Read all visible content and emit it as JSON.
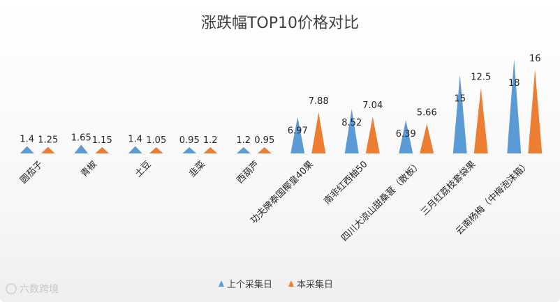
{
  "watermark": "六数跨境",
  "chart_data": {
    "type": "bar",
    "bar_shape": "triangle",
    "title": "涨跌幅TOP10价格对比",
    "xlabel": "",
    "ylabel": "",
    "ylim": [
      0,
      18
    ],
    "grid": false,
    "legend_placement": "bottom",
    "categories": [
      "圆茄子",
      "青椒",
      "土豆",
      "韭菜",
      "西葫芦",
      "功夫牌泰国椰皇40果",
      "南非红西柚50",
      "四川大凉山甜桑葚（散板）",
      "三月红荔枝套袋果",
      "云南杨梅（中梅泡沫箱）"
    ],
    "series": [
      {
        "name": "上个采集日",
        "color": "#5b9bd5",
        "values": [
          1.4,
          1.65,
          1.4,
          0.95,
          1.2,
          6.97,
          8.52,
          6.39,
          15,
          18
        ],
        "labels": [
          "1.4",
          "1.65",
          "1.4",
          "0.95",
          "1.2",
          "6.97",
          "8.52",
          "6.39",
          "15",
          "18"
        ]
      },
      {
        "name": "本采集日",
        "color": "#ed7d31",
        "values": [
          1.25,
          1.15,
          1.05,
          1.2,
          0.95,
          7.88,
          7.04,
          5.66,
          12.5,
          16
        ],
        "labels": [
          "1.25",
          "1.15",
          "1.05",
          "1.2",
          "0.95",
          "7.88",
          "7.04",
          "5.66",
          "12.5",
          "16"
        ]
      }
    ]
  }
}
